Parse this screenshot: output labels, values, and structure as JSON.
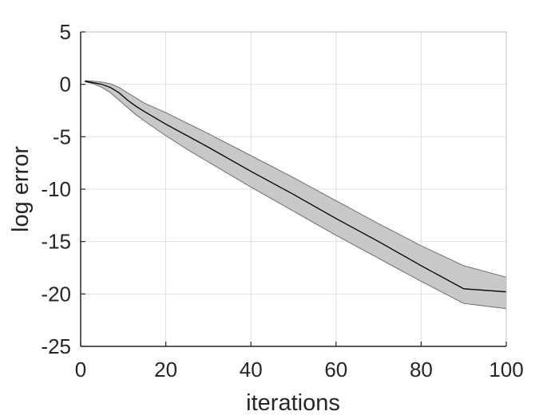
{
  "chart_data": {
    "type": "line",
    "title": "",
    "xlabel": "iterations",
    "ylabel": "log error",
    "xlim": [
      0,
      100
    ],
    "ylim": [
      -25,
      5
    ],
    "xticks": [
      0,
      20,
      40,
      60,
      80,
      100
    ],
    "yticks": [
      5,
      0,
      -5,
      -10,
      -15,
      -20,
      -25
    ],
    "grid": true,
    "colors": {
      "line": "#000000",
      "band": "#c8c8c8",
      "band_edge": "#6e6e6e",
      "grid": "#e0e0e0",
      "axis": "#262626"
    },
    "series": [
      {
        "style": "mean-line",
        "x": [
          1,
          3,
          5,
          7,
          9,
          11,
          13,
          15,
          20,
          25,
          30,
          40,
          50,
          60,
          70,
          80,
          90,
          100
        ],
        "y": [
          0.3,
          0.15,
          0.0,
          -0.3,
          -0.8,
          -1.5,
          -2.1,
          -2.6,
          -3.8,
          -4.9,
          -6.0,
          -8.3,
          -10.5,
          -12.8,
          -15.0,
          -17.3,
          -19.5,
          -19.8
        ]
      },
      {
        "style": "band-upper",
        "x": [
          1,
          3,
          5,
          7,
          9,
          11,
          13,
          15,
          20,
          25,
          30,
          40,
          50,
          60,
          70,
          80,
          90,
          100
        ],
        "y": [
          0.35,
          0.3,
          0.2,
          0.05,
          -0.3,
          -0.8,
          -1.3,
          -1.8,
          -2.7,
          -3.7,
          -4.7,
          -6.8,
          -8.9,
          -11.1,
          -13.3,
          -15.4,
          -17.3,
          -18.4
        ]
      },
      {
        "style": "band-lower",
        "x": [
          1,
          3,
          5,
          7,
          9,
          11,
          13,
          15,
          20,
          25,
          30,
          40,
          50,
          60,
          70,
          80,
          90,
          100
        ],
        "y": [
          0.25,
          0.05,
          -0.3,
          -0.8,
          -1.5,
          -2.2,
          -2.9,
          -3.5,
          -4.9,
          -6.2,
          -7.4,
          -9.8,
          -12.1,
          -14.4,
          -16.6,
          -18.8,
          -20.9,
          -21.4
        ]
      }
    ]
  }
}
